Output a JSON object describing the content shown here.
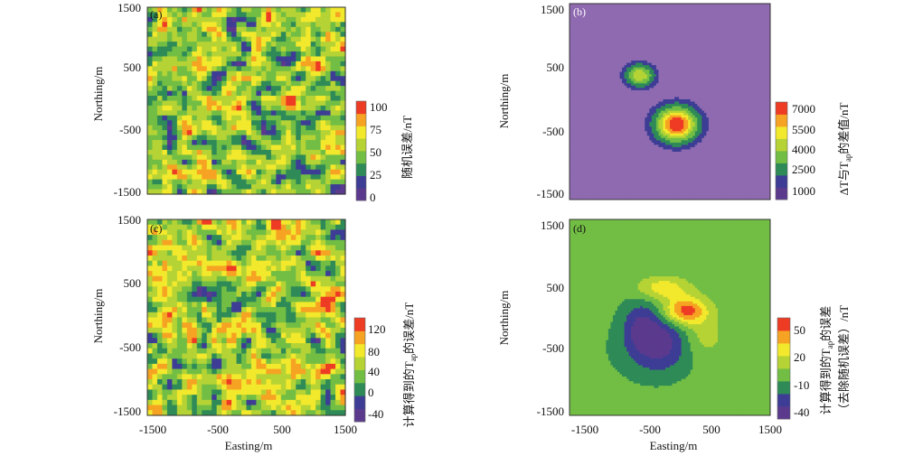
{
  "panels": [
    {
      "tag": "(a)",
      "type": "heatmap",
      "pattern": "random",
      "xlim": [
        -1500,
        1500
      ],
      "ylim": [
        -1500,
        1500
      ],
      "xticks": [],
      "yticks": [
        "-1500",
        "-500",
        "500",
        "1500"
      ],
      "xlabel": "",
      "ylabel": "Northing/m",
      "colorbar": {
        "ticks": [
          "100",
          "75",
          "50",
          "25",
          "0"
        ],
        "label": "随机误差/nT",
        "min": 0,
        "max": 110
      }
    },
    {
      "tag": "(b)",
      "type": "heatmap",
      "pattern": "anomaly",
      "xlim": [
        -1500,
        1500
      ],
      "ylim": [
        -1500,
        1500
      ],
      "xticks": [],
      "yticks": [
        "-1500",
        "-500",
        "500",
        "1500"
      ],
      "xlabel": "",
      "ylabel": "Northing/m",
      "colorbar": {
        "ticks": [
          "7000",
          "5500",
          "4000",
          "2500",
          "1000"
        ],
        "label_parts": [
          "ΔT与T",
          "ap",
          "的差值/nT"
        ],
        "min": 0,
        "max": 7500
      }
    },
    {
      "tag": "(c)",
      "type": "heatmap",
      "pattern": "random",
      "xlim": [
        -1500,
        1500
      ],
      "ylim": [
        -1500,
        1500
      ],
      "xticks": [
        "-1500",
        "-500",
        "500",
        "1500"
      ],
      "yticks": [
        "-1500",
        "-500",
        "500",
        "1500"
      ],
      "xlabel": "Easting/m",
      "ylabel": "Northing/m",
      "colorbar": {
        "ticks": [
          "120",
          "80",
          "40",
          "0",
          "-40"
        ],
        "label_parts": [
          "计算得到的T",
          "ap",
          "的误差/nT"
        ],
        "min": -60,
        "max": 150
      }
    },
    {
      "tag": "(d)",
      "type": "heatmap",
      "pattern": "residual",
      "xlim": [
        -1500,
        1500
      ],
      "ylim": [
        -1500,
        1500
      ],
      "xticks": [
        "-1500",
        "-500",
        "500",
        "1500"
      ],
      "yticks": [
        "-1500",
        "-500",
        "500",
        "1500"
      ],
      "xlabel": "Easting/m",
      "ylabel": "Northing/m",
      "colorbar": {
        "ticks": [
          "50",
          "20",
          "-10",
          "-40"
        ],
        "label_parts": [
          "计算得到的T",
          "ap",
          "的误差"
        ],
        "label2": "（去除随机误差）/nT",
        "min": -50,
        "max": 60
      }
    }
  ],
  "colors": {
    "scale": [
      "#5b3a8e",
      "#3d3d95",
      "#2e8b57",
      "#72be44",
      "#b5d334",
      "#f2e82c",
      "#f6a323",
      "#ee3b24"
    ],
    "panel_b_background": "#8f6ab0"
  }
}
